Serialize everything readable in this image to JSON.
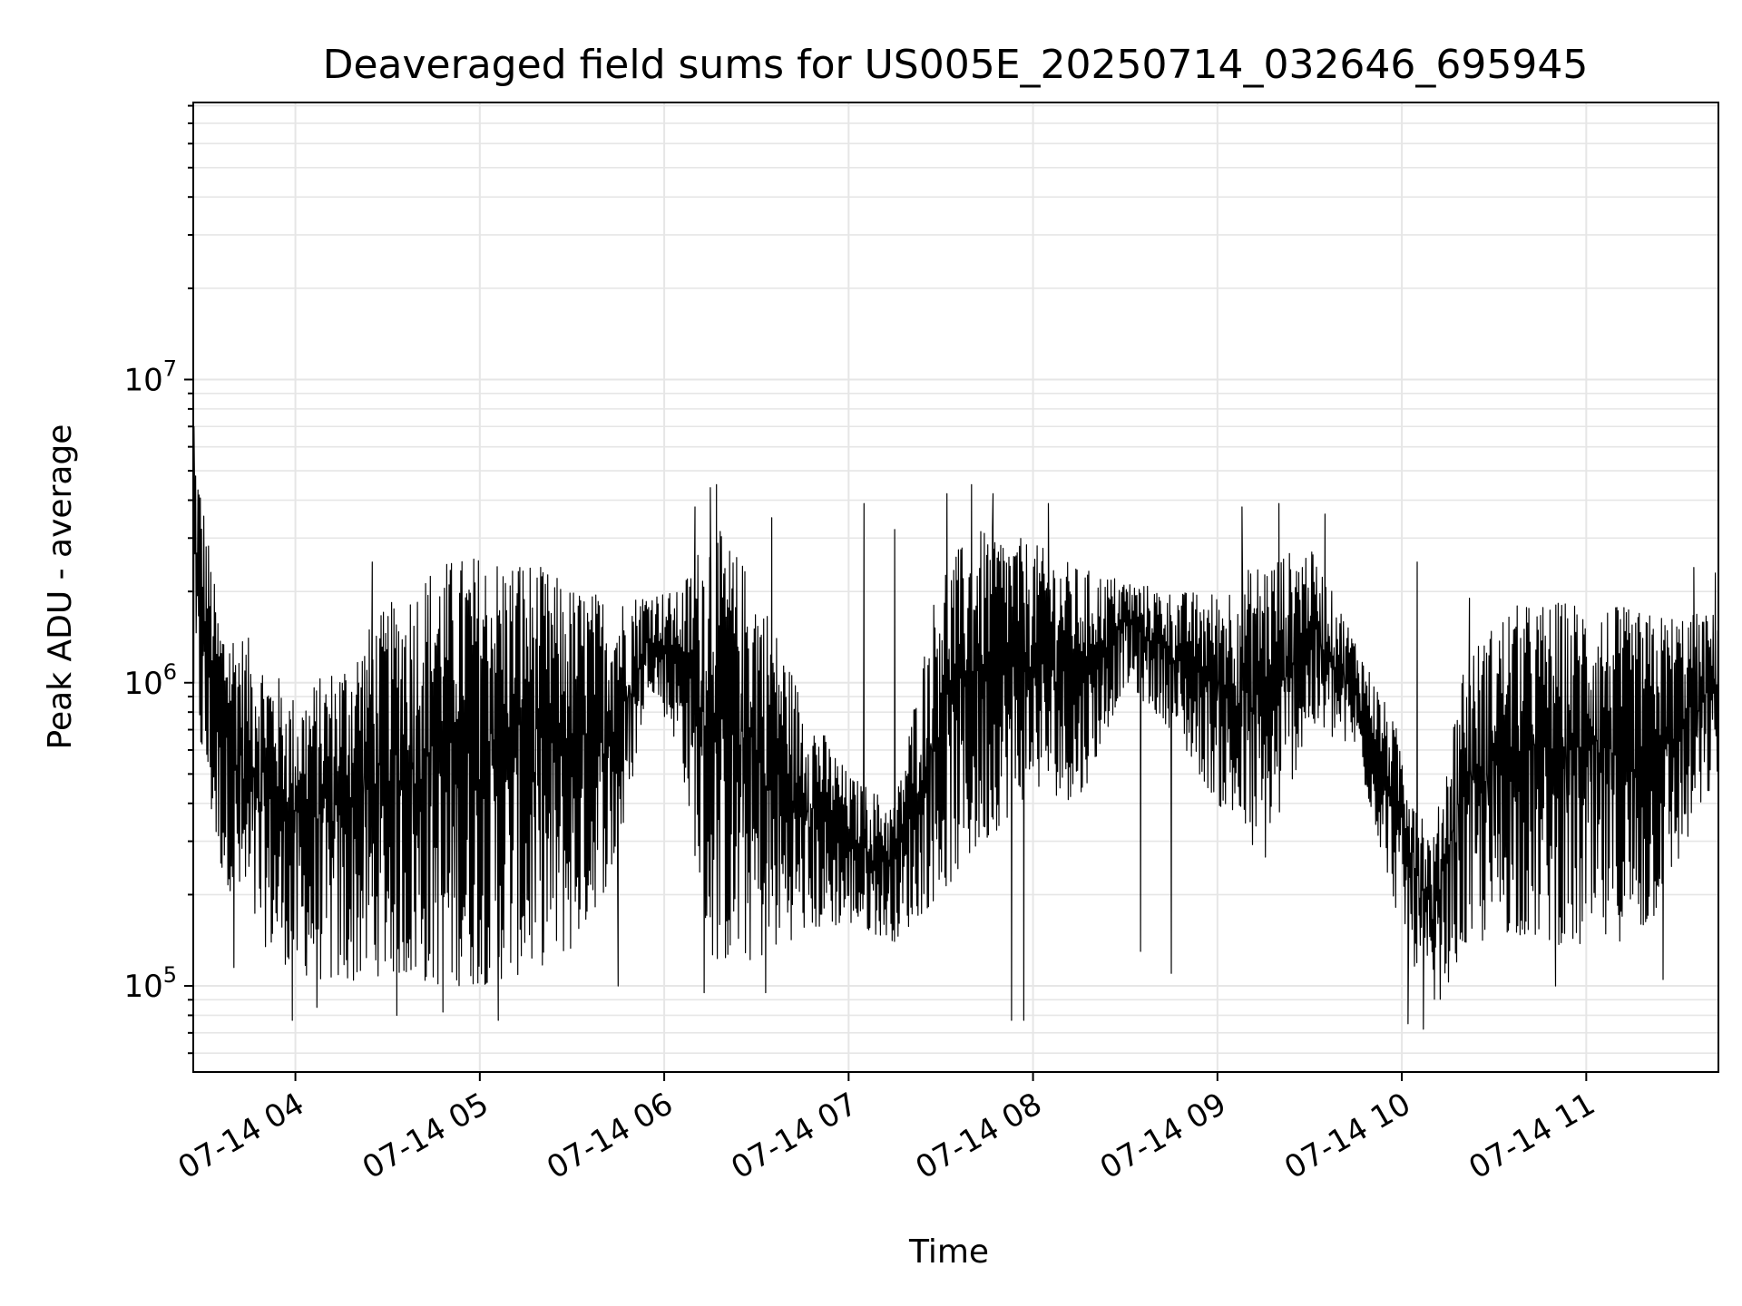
{
  "chart_data": {
    "type": "line",
    "title": "Deaveraged field sums for US005E_20250714_032646_695945",
    "xlabel": "Time",
    "ylabel": "Peak ADU - average",
    "y_scale": "log",
    "ylim": [
      52000,
      82000000
    ],
    "xlim": [
      "2025-07-14T03:26:46",
      "2025-07-14T11:43:00"
    ],
    "grid": true,
    "line_color": "#000000",
    "grid_color": "#e6e6e6",
    "x_ticks": [
      {
        "t": "2025-07-14T04:00:00",
        "label": "07-14 04"
      },
      {
        "t": "2025-07-14T05:00:00",
        "label": "07-14 05"
      },
      {
        "t": "2025-07-14T06:00:00",
        "label": "07-14 06"
      },
      {
        "t": "2025-07-14T07:00:00",
        "label": "07-14 07"
      },
      {
        "t": "2025-07-14T08:00:00",
        "label": "07-14 08"
      },
      {
        "t": "2025-07-14T09:00:00",
        "label": "07-14 09"
      },
      {
        "t": "2025-07-14T10:00:00",
        "label": "07-14 10"
      },
      {
        "t": "2025-07-14T11:00:00",
        "label": "07-14 11"
      }
    ],
    "y_ticks": [
      {
        "value": 100000,
        "base": "10",
        "exp": "5"
      },
      {
        "value": 1000000,
        "base": "10",
        "exp": "6"
      },
      {
        "value": 10000000,
        "base": "10",
        "exp": "7"
      }
    ],
    "series": [
      {
        "profile": [
          {
            "t": "2025-07-14T03:26:46",
            "lo": 800000,
            "hi": 7000000
          },
          {
            "t": "2025-07-14T03:35:00",
            "lo": 250000,
            "hi": 1700000
          },
          {
            "t": "2025-07-14T03:45:00",
            "lo": 150000,
            "hi": 1400000
          },
          {
            "t": "2025-07-14T04:00:00",
            "lo": 110000,
            "hi": 900000
          },
          {
            "t": "2025-07-14T04:15:00",
            "lo": 100000,
            "hi": 1200000
          },
          {
            "t": "2025-07-14T04:30:00",
            "lo": 110000,
            "hi": 1800000
          },
          {
            "t": "2025-07-14T04:45:00",
            "lo": 100000,
            "hi": 2500000
          },
          {
            "t": "2025-07-14T05:00:00",
            "lo": 100000,
            "hi": 2700000
          },
          {
            "t": "2025-07-14T05:15:00",
            "lo": 110000,
            "hi": 2600000
          },
          {
            "t": "2025-07-14T05:30:00",
            "lo": 130000,
            "hi": 2100000
          },
          {
            "t": "2025-07-14T05:45:00",
            "lo": 250000,
            "hi": 1900000
          },
          {
            "t": "2025-07-14T05:55:00",
            "lo": 1000000,
            "hi": 2000000
          },
          {
            "t": "2025-07-14T06:05:00",
            "lo": 600000,
            "hi": 2000000
          },
          {
            "t": "2025-07-14T06:15:00",
            "lo": 120000,
            "hi": 3500000
          },
          {
            "t": "2025-07-14T06:30:00",
            "lo": 120000,
            "hi": 2200000
          },
          {
            "t": "2025-07-14T06:45:00",
            "lo": 150000,
            "hi": 900000
          },
          {
            "t": "2025-07-14T07:00:00",
            "lo": 160000,
            "hi": 500000
          },
          {
            "t": "2025-07-14T07:15:00",
            "lo": 140000,
            "hi": 400000
          },
          {
            "t": "2025-07-14T07:30:00",
            "lo": 200000,
            "hi": 2500000
          },
          {
            "t": "2025-07-14T07:45:00",
            "lo": 300000,
            "hi": 3300000
          },
          {
            "t": "2025-07-14T08:00:00",
            "lo": 450000,
            "hi": 2900000
          },
          {
            "t": "2025-07-14T08:15:00",
            "lo": 400000,
            "hi": 2400000
          },
          {
            "t": "2025-07-14T08:30:00",
            "lo": 1000000,
            "hi": 2200000
          },
          {
            "t": "2025-07-14T08:45:00",
            "lo": 700000,
            "hi": 2000000
          },
          {
            "t": "2025-07-14T09:00:00",
            "lo": 400000,
            "hi": 2000000
          },
          {
            "t": "2025-07-14T09:15:00",
            "lo": 250000,
            "hi": 2600000
          },
          {
            "t": "2025-07-14T09:30:00",
            "lo": 700000,
            "hi": 2800000
          },
          {
            "t": "2025-07-14T09:45:00",
            "lo": 600000,
            "hi": 1400000
          },
          {
            "t": "2025-07-14T10:00:00",
            "lo": 150000,
            "hi": 650000
          },
          {
            "t": "2025-07-14T10:10:00",
            "lo": 80000,
            "hi": 300000
          },
          {
            "t": "2025-07-14T10:20:00",
            "lo": 130000,
            "hi": 1200000
          },
          {
            "t": "2025-07-14T10:35:00",
            "lo": 150000,
            "hi": 1800000
          },
          {
            "t": "2025-07-14T11:00:00",
            "lo": 130000,
            "hi": 1900000
          },
          {
            "t": "2025-07-14T11:20:00",
            "lo": 150000,
            "hi": 1700000
          },
          {
            "t": "2025-07-14T11:43:00",
            "lo": 500000,
            "hi": 1700000
          }
        ],
        "spikes": [
          {
            "t": "2025-07-14T03:27:00",
            "value": 7000000
          },
          {
            "t": "2025-07-14T03:40:00",
            "value": 115000
          },
          {
            "t": "2025-07-14T03:59:00",
            "value": 77000
          },
          {
            "t": "2025-07-14T04:07:00",
            "value": 85000
          },
          {
            "t": "2025-07-14T04:25:00",
            "value": 2500000
          },
          {
            "t": "2025-07-14T04:33:00",
            "value": 80000
          },
          {
            "t": "2025-07-14T04:48:00",
            "value": 82000
          },
          {
            "t": "2025-07-14T05:06:00",
            "value": 77000
          },
          {
            "t": "2025-07-14T05:13:00",
            "value": 2400000
          },
          {
            "t": "2025-07-14T05:45:00",
            "value": 100000
          },
          {
            "t": "2025-07-14T06:10:00",
            "value": 3800000
          },
          {
            "t": "2025-07-14T06:13:00",
            "value": 95000
          },
          {
            "t": "2025-07-14T06:15:00",
            "value": 4400000
          },
          {
            "t": "2025-07-14T06:17:00",
            "value": 4500000
          },
          {
            "t": "2025-07-14T06:33:00",
            "value": 95000
          },
          {
            "t": "2025-07-14T06:35:00",
            "value": 3500000
          },
          {
            "t": "2025-07-14T07:05:00",
            "value": 3900000
          },
          {
            "t": "2025-07-14T07:15:00",
            "value": 3200000
          },
          {
            "t": "2025-07-14T07:32:00",
            "value": 4200000
          },
          {
            "t": "2025-07-14T07:40:00",
            "value": 4500000
          },
          {
            "t": "2025-07-14T07:47:00",
            "value": 4200000
          },
          {
            "t": "2025-07-14T07:53:00",
            "value": 77000
          },
          {
            "t": "2025-07-14T07:57:00",
            "value": 77000
          },
          {
            "t": "2025-07-14T08:05:00",
            "value": 3900000
          },
          {
            "t": "2025-07-14T08:35:00",
            "value": 130000
          },
          {
            "t": "2025-07-14T08:45:00",
            "value": 110000
          },
          {
            "t": "2025-07-14T09:08:00",
            "value": 3800000
          },
          {
            "t": "2025-07-14T09:20:00",
            "value": 3900000
          },
          {
            "t": "2025-07-14T09:35:00",
            "value": 3600000
          },
          {
            "t": "2025-07-14T10:02:00",
            "value": 75000
          },
          {
            "t": "2025-07-14T10:05:00",
            "value": 2500000
          },
          {
            "t": "2025-07-14T10:07:00",
            "value": 72000
          },
          {
            "t": "2025-07-14T10:22:00",
            "value": 1900000
          },
          {
            "t": "2025-07-14T10:50:00",
            "value": 100000
          },
          {
            "t": "2025-07-14T11:25:00",
            "value": 105000
          },
          {
            "t": "2025-07-14T11:35:00",
            "value": 2400000
          },
          {
            "t": "2025-07-14T11:42:00",
            "value": 2300000
          }
        ]
      }
    ]
  }
}
